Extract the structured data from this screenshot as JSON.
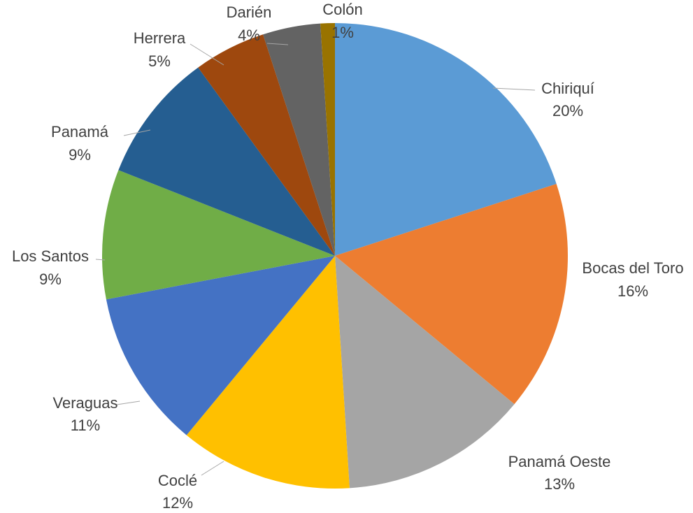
{
  "chart_data": {
    "type": "pie",
    "categories": [
      "Chiriquí",
      "Bocas del Toro",
      "Panamá Oeste",
      "Coclé",
      "Veraguas",
      "Los Santos",
      "Panamá",
      "Herrera",
      "Darién",
      "Colón"
    ],
    "values": [
      20,
      16,
      13,
      12,
      11,
      9,
      9,
      5,
      4,
      1
    ],
    "value_labels": [
      "20%",
      "16%",
      "13%",
      "12%",
      "11%",
      "9%",
      "9%",
      "5%",
      "4%",
      "1%"
    ],
    "colors": [
      "#5b9bd5",
      "#ed7d31",
      "#a5a5a5",
      "#ffc000",
      "#4472c4",
      "#70ad47",
      "#255e91",
      "#9e480e",
      "#636363",
      "#997300"
    ],
    "start_angle_deg": 0,
    "direction": "clockwise",
    "legend": "none",
    "data_labels": "outside-with-leader-lines"
  }
}
